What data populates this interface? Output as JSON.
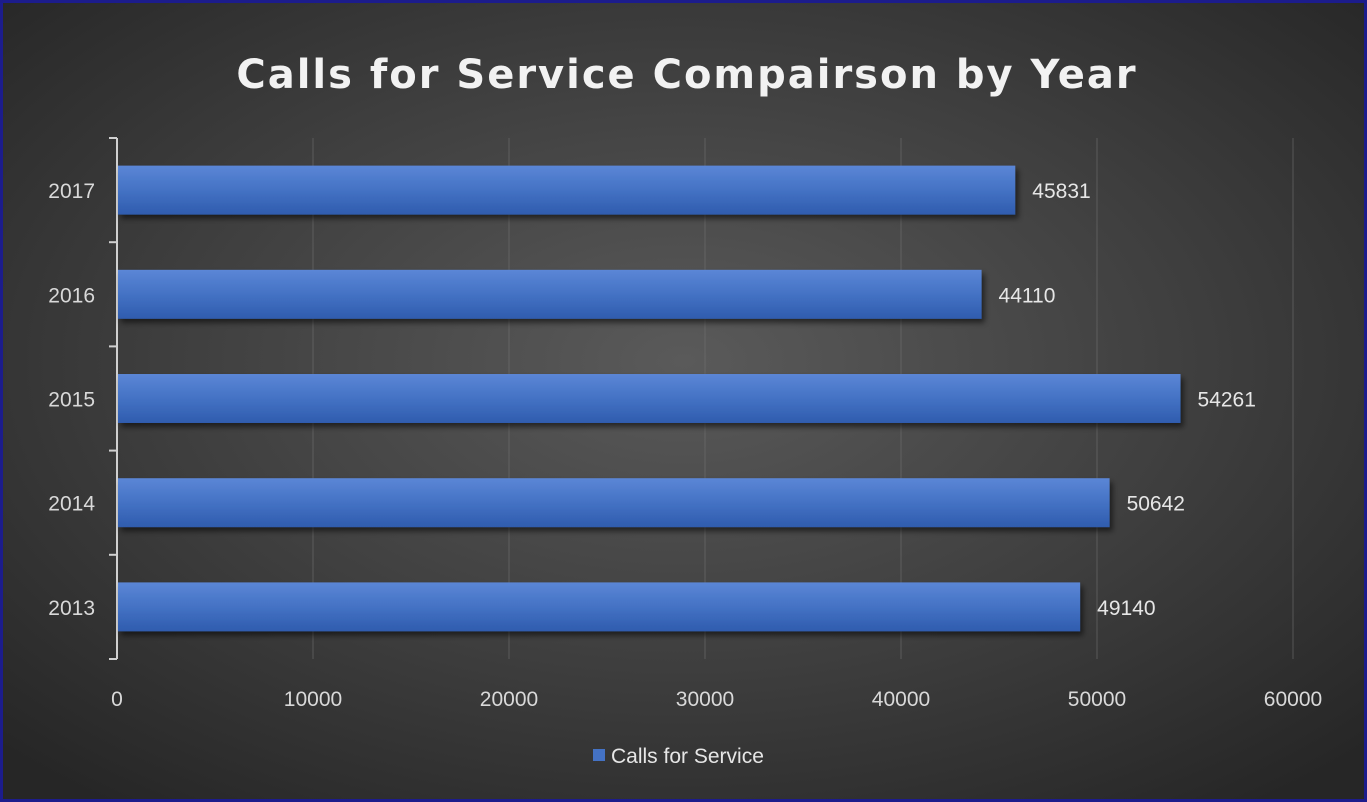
{
  "chart_data": {
    "type": "bar",
    "orientation": "horizontal",
    "title": "Calls for Service Compairson by Year",
    "categories": [
      "2017",
      "2016",
      "2015",
      "2014",
      "2013"
    ],
    "series": [
      {
        "name": "Calls for Service",
        "values": [
          45831,
          44110,
          54261,
          50642,
          49140
        ],
        "color": "#4472c4"
      }
    ],
    "xlim": [
      0,
      60000
    ],
    "xticks": [
      0,
      10000,
      20000,
      30000,
      40000,
      50000,
      60000
    ],
    "xtick_labels": [
      "0",
      "10000",
      "20000",
      "30000",
      "40000",
      "50000",
      "60000"
    ],
    "grid": "vertical",
    "data_labels": true,
    "legend": "bottom"
  }
}
